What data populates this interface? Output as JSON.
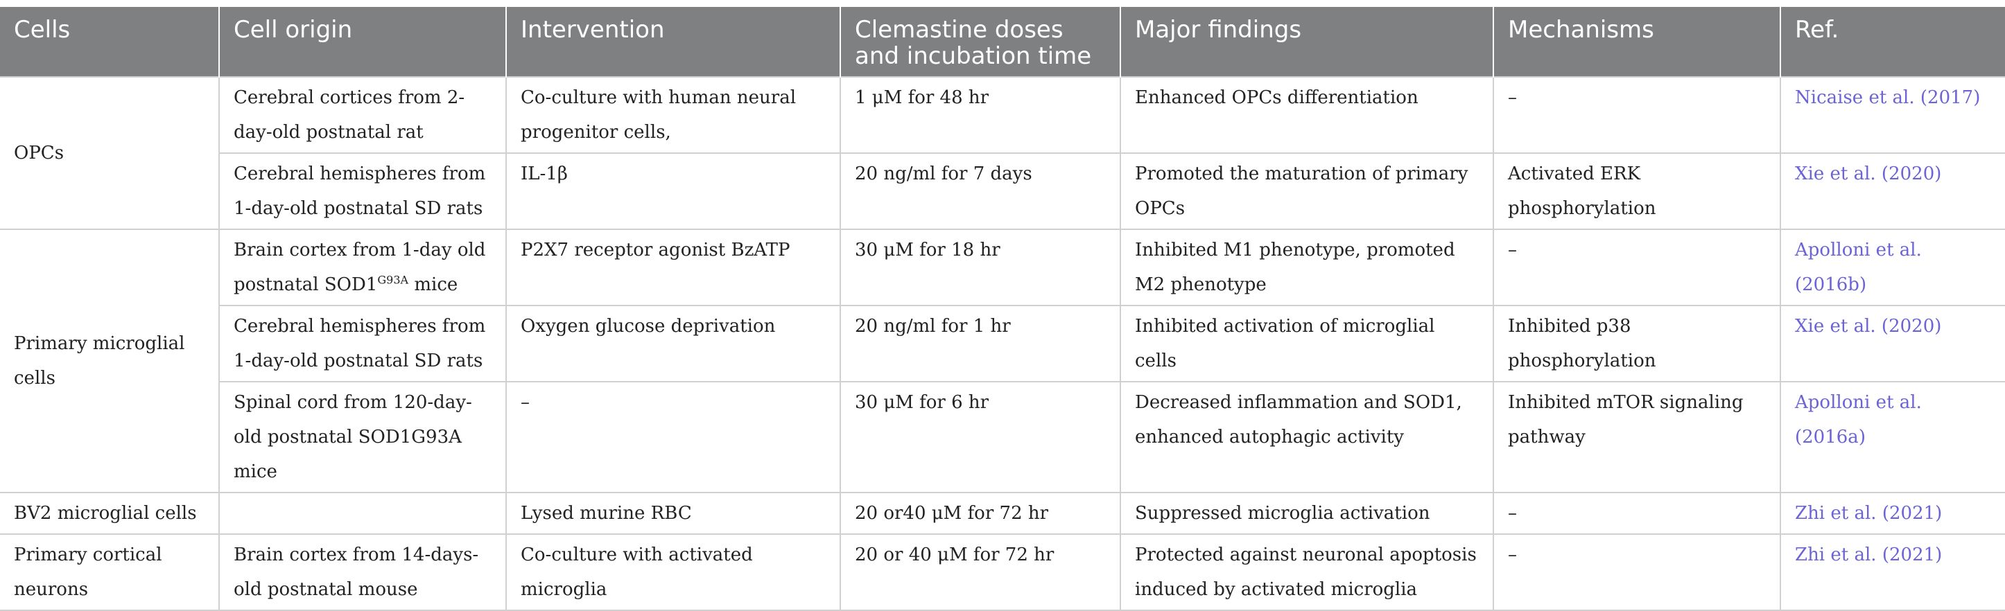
{
  "headers": [
    "Cells",
    "Cell origin",
    "Intervention",
    "Clemastine doses and incubation time",
    "Major findings",
    "Mechanisms",
    "Ref."
  ],
  "rows": [
    {
      "cells": "OPCs",
      "origin": "Cerebral cortices from 2-day-old postnatal rat",
      "intervention": "Co-culture with human neural progenitor cells,",
      "dose": "1 μM for 48 hr",
      "findings": "Enhanced OPCs differentiation",
      "mechanism": "–",
      "ref": "Nicaise et al. (2017)"
    },
    {
      "origin": "Cerebral hemispheres from 1-day-old postnatal SD rats",
      "intervention": "IL-1β",
      "dose": "20 ng/ml for 7 days",
      "findings": "Promoted the maturation of primary OPCs",
      "mechanism": "Activated ERK phosphorylation",
      "ref": "Xie et al. (2020)"
    },
    {
      "cells": "Primary microglial cells",
      "origin_pre": "Brain cortex from 1-day old postnatal SOD1",
      "origin_sup": "G93A",
      "origin_post": " mice",
      "intervention": "P2X7 receptor agonist BzATP",
      "dose": "30 μM for 18 hr",
      "findings": "Inhibited M1 phenotype, promoted M2 phenotype",
      "mechanism": "–",
      "ref": "Apolloni et al. (2016b)"
    },
    {
      "origin": "Cerebral hemispheres from 1-day-old postnatal SD rats",
      "intervention": "Oxygen glucose deprivation",
      "dose": "20 ng/ml for 1 hr",
      "findings": "Inhibited activation of microglial cells",
      "mechanism": "Inhibited p38 phosphorylation",
      "ref": "Xie et al. (2020)"
    },
    {
      "origin": "Spinal cord from 120-day-old postnatal SOD1G93A mice",
      "intervention": "–",
      "dose": "30 μM for 6 hr",
      "findings": "Decreased inflammation and SOD1, enhanced autophagic activity",
      "mechanism": "Inhibited mTOR signaling pathway",
      "ref": "Apolloni et al. (2016a)"
    },
    {
      "cells": "BV2 microglial cells",
      "origin": "",
      "intervention": "Lysed murine RBC",
      "dose": "20 or40 μM for 72 hr",
      "findings": "Suppressed microglia activation",
      "mechanism": "–",
      "ref": "Zhi et al. (2021)"
    },
    {
      "cells": "Primary cortical neurons",
      "origin": "Brain cortex from 14-days-old postnatal mouse",
      "intervention": "Co-culture with activated microglia",
      "dose": "20 or 40 μM for 72 hr",
      "findings": "Protected against neuronal apoptosis induced by activated microglia",
      "mechanism": "–",
      "ref": "Zhi et al. (2021)"
    }
  ],
  "colors": {
    "header_bg": "#7f8081",
    "header_text": "#ffffff",
    "ref_link": "#6b63d6",
    "border": "#d0d0d0"
  }
}
